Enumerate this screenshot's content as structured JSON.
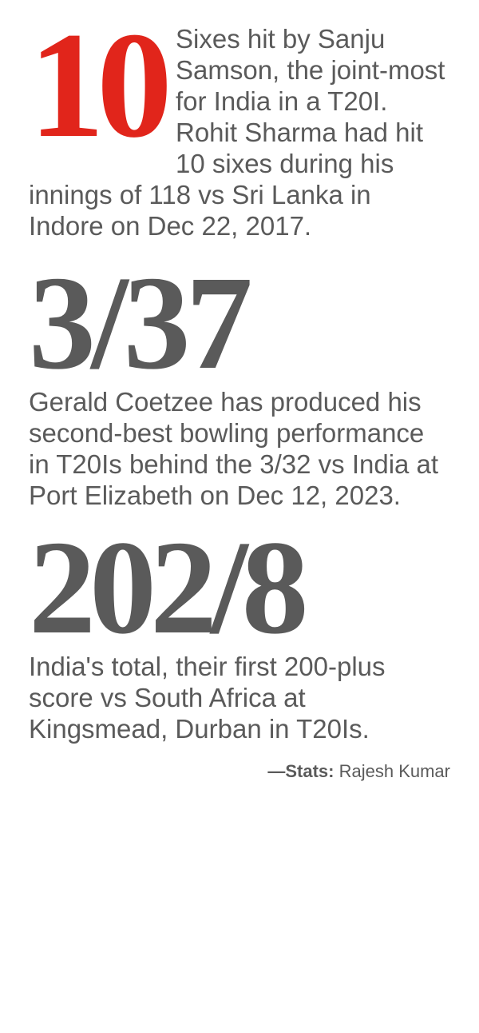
{
  "stat1": {
    "number": "10",
    "desc": "Sixes hit by Sanju Samson, the joint-most for India in a T20I. Rohit Sharma had hit 10 sixes during his innings of 118 vs Sri Lanka in Indore on Dec 22, 2017.",
    "number_color": "#e1251b",
    "number_fontsize": 190
  },
  "stat2": {
    "number": "3/37",
    "desc": "Gerald Coetzee has produced his second-best bowling performance in T20Is behind the 3/32 vs India at Port Elizabeth on Dec 12, 2023.",
    "number_color": "#5a5a5a",
    "number_fontsize": 168
  },
  "stat3": {
    "number": "202/8",
    "desc": "India's total, their first 200-plus score vs South Africa at Kingsmead, Durban in T20Is.",
    "number_color": "#5a5a5a",
    "number_fontsize": 168
  },
  "credit": {
    "label": "—Stats:",
    "name": " Rajesh Kumar"
  },
  "body_fontsize": 33,
  "text_color": "#5a5a5a",
  "background_color": "#ffffff"
}
